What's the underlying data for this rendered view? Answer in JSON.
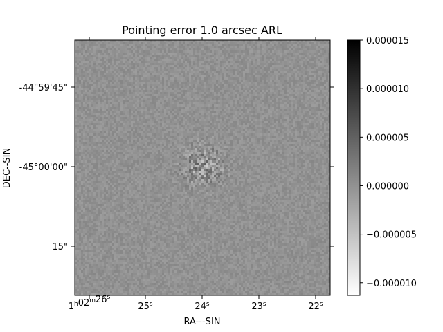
{
  "chart_data": {
    "type": "heatmap",
    "title": "Pointing error 1.0 arcsec ARL",
    "xlabel": "RA---SIN",
    "ylabel": "DEC--SIN",
    "colormap": "Greys",
    "grid": false,
    "x_ticks": [
      {
        "label": "1h02m26s",
        "base": "1",
        "sup1": "h",
        "mid": "02",
        "sup2": "m",
        "main": "26",
        "sup3": "s"
      },
      {
        "label": "25s",
        "main": "25",
        "sup3": "s"
      },
      {
        "label": "24s",
        "main": "24",
        "sup3": "s"
      },
      {
        "label": "23s",
        "main": "23",
        "sup3": "s"
      },
      {
        "label": "22s",
        "main": "22",
        "sup3": "s"
      }
    ],
    "y_ticks": [
      "-44°59'45\"",
      "-45°00'00\"",
      "15\""
    ],
    "colorbar": {
      "ticks": [
        "0.000015",
        "0.000010",
        "0.000005",
        "0.000000",
        "−0.000005",
        "−0.000010"
      ],
      "tick_values": [
        1.5e-05,
        1e-05,
        5e-06,
        0.0,
        -5e-06,
        -1e-05
      ],
      "vmin": -1.13e-05,
      "vmax": 1.5e-05
    },
    "image_description_values": {
      "background_level": 0.0,
      "noise_amplitude": 1.2e-06,
      "center_peak_amplitude": 6e-06
    }
  }
}
